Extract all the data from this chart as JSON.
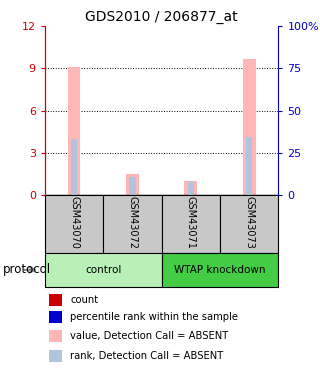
{
  "title": "GDS2010 / 206877_at",
  "samples": [
    "GSM43070",
    "GSM43072",
    "GSM43071",
    "GSM43073"
  ],
  "group_light": "#b8f0b8",
  "group_dark": "#44cc44",
  "bar_colors_absent": "#FFB6B6",
  "bar_colors_rank_absent": "#B0C4DE",
  "bar_colors_count": "#FF0000",
  "bar_colors_rank": "#0000FF",
  "ylim_left": [
    0,
    12
  ],
  "ylim_right": [
    0,
    100
  ],
  "yticks_left": [
    0,
    3,
    6,
    9,
    12
  ],
  "yticks_right": [
    0,
    25,
    50,
    75,
    100
  ],
  "yticklabels_right": [
    "0",
    "25",
    "50",
    "75",
    "100%"
  ],
  "left_axis_color": "#CC0000",
  "right_axis_color": "#0000CC",
  "absent_values": [
    9.1,
    1.5,
    1.0,
    9.7
  ],
  "absent_ranks": [
    4.0,
    1.3,
    0.9,
    4.1
  ],
  "legend_items": [
    {
      "color": "#CC0000",
      "label": "count"
    },
    {
      "color": "#0000CC",
      "label": "percentile rank within the sample"
    },
    {
      "color": "#FFB6B6",
      "label": "value, Detection Call = ABSENT"
    },
    {
      "color": "#B0C4DE",
      "label": "rank, Detection Call = ABSENT"
    }
  ],
  "bg_color": "#ffffff",
  "sample_bg": "#C8C8C8",
  "figsize": [
    3.2,
    3.75
  ],
  "dpi": 100
}
